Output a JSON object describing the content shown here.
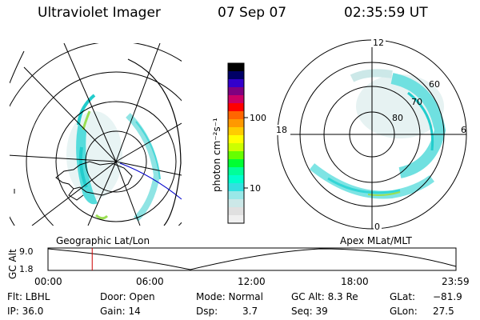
{
  "header": {
    "instrument": "Ultraviolet Imager",
    "date": "07 Sep 07",
    "time": "02:35:59 UT"
  },
  "geo_panel": {
    "caption": "Geographic Lat/Lon"
  },
  "apex_panel": {
    "caption": "Apex MLat/MLT",
    "mlt_labels": {
      "top": "12",
      "left": "18",
      "right": "6",
      "bottom": "0"
    },
    "lat_labels": [
      "60",
      "70",
      "80"
    ]
  },
  "colorbar": {
    "label": "photon cm⁻²s⁻¹",
    "ticks": [
      "100",
      "10"
    ],
    "colors": [
      "#000000",
      "#000066",
      "#3300cc",
      "#800080",
      "#cc0066",
      "#ff0000",
      "#ff6600",
      "#ff9900",
      "#ffcc00",
      "#ffff00",
      "#ccff00",
      "#66ff00",
      "#00ff33",
      "#00ff99",
      "#00ffcc",
      "#33e0e0",
      "#99e8e8",
      "#cce8e8",
      "#e0e0e0",
      "#f0f0f0"
    ]
  },
  "altitude_plot": {
    "ylabel": "GC Alt",
    "yticks": [
      "9.0",
      "1.8"
    ],
    "xticks": [
      "00:00",
      "06:00",
      "12:00",
      "18:00",
      "23:59"
    ],
    "current_time_hours": 2.6,
    "marker_color": "#cc0000"
  },
  "info_rows": {
    "row1": {
      "filter": "Flt: LBHL",
      "door": "Door: Open",
      "mode": "Mode: Normal",
      "gc_alt": "GC Alt: 8.3 Re",
      "glat_label": "GLat:",
      "glat_value": "−81.9"
    },
    "row2": {
      "ip": "IP: 36.0",
      "gain": "Gain: 14",
      "dsp_label": "Dsp:",
      "dsp_value": "3.7",
      "seq": "Seq: 39",
      "glon_label": "GLon:",
      "glon_value": "27.5"
    }
  }
}
